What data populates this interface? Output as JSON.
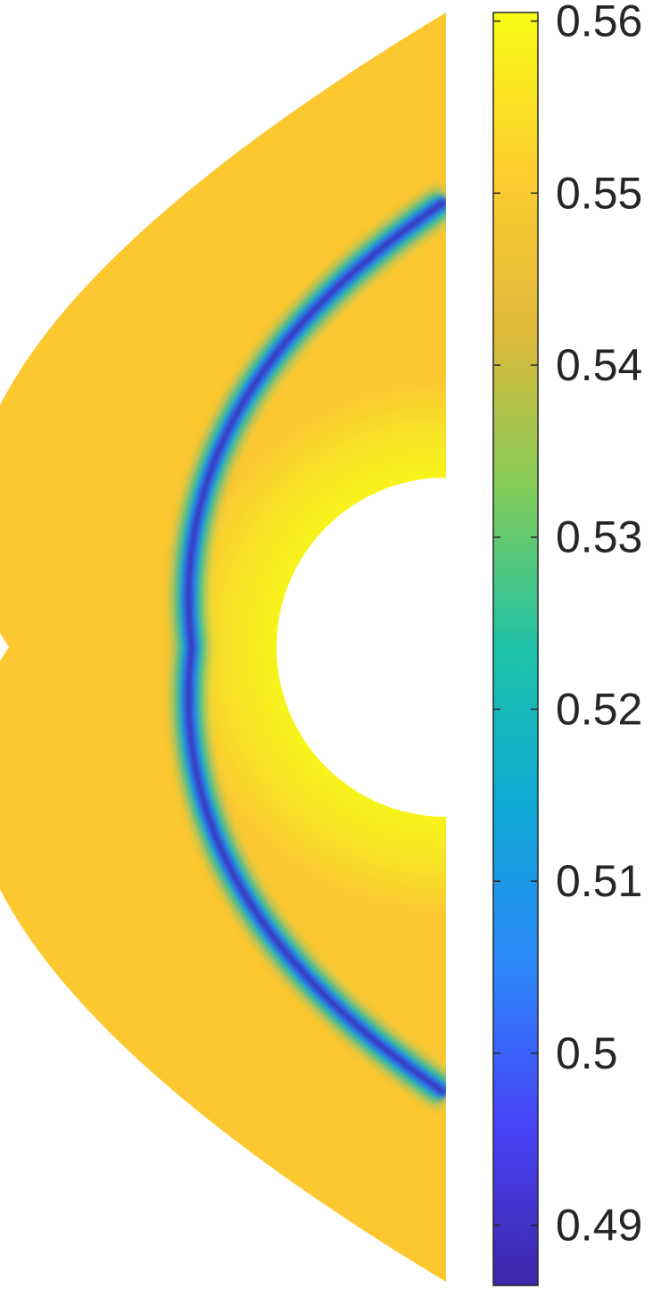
{
  "chart_data": {
    "type": "heatmap",
    "title": "",
    "xlabel": "",
    "ylabel": "",
    "colorbar": {
      "colormap": "parula",
      "clim": [
        0.4865,
        0.5605
      ],
      "ticks": [
        0.49,
        0.5,
        0.51,
        0.52,
        0.53,
        0.54,
        0.55,
        0.56
      ],
      "tick_labels": [
        "0.49",
        "0.5",
        "0.51",
        "0.52",
        "0.53",
        "0.54",
        "0.55",
        "0.56"
      ],
      "location": "right"
    },
    "field": {
      "description_values": {
        "background": 0.552,
        "shock_band_min": 0.488,
        "near_body_max": 0.56
      }
    }
  }
}
